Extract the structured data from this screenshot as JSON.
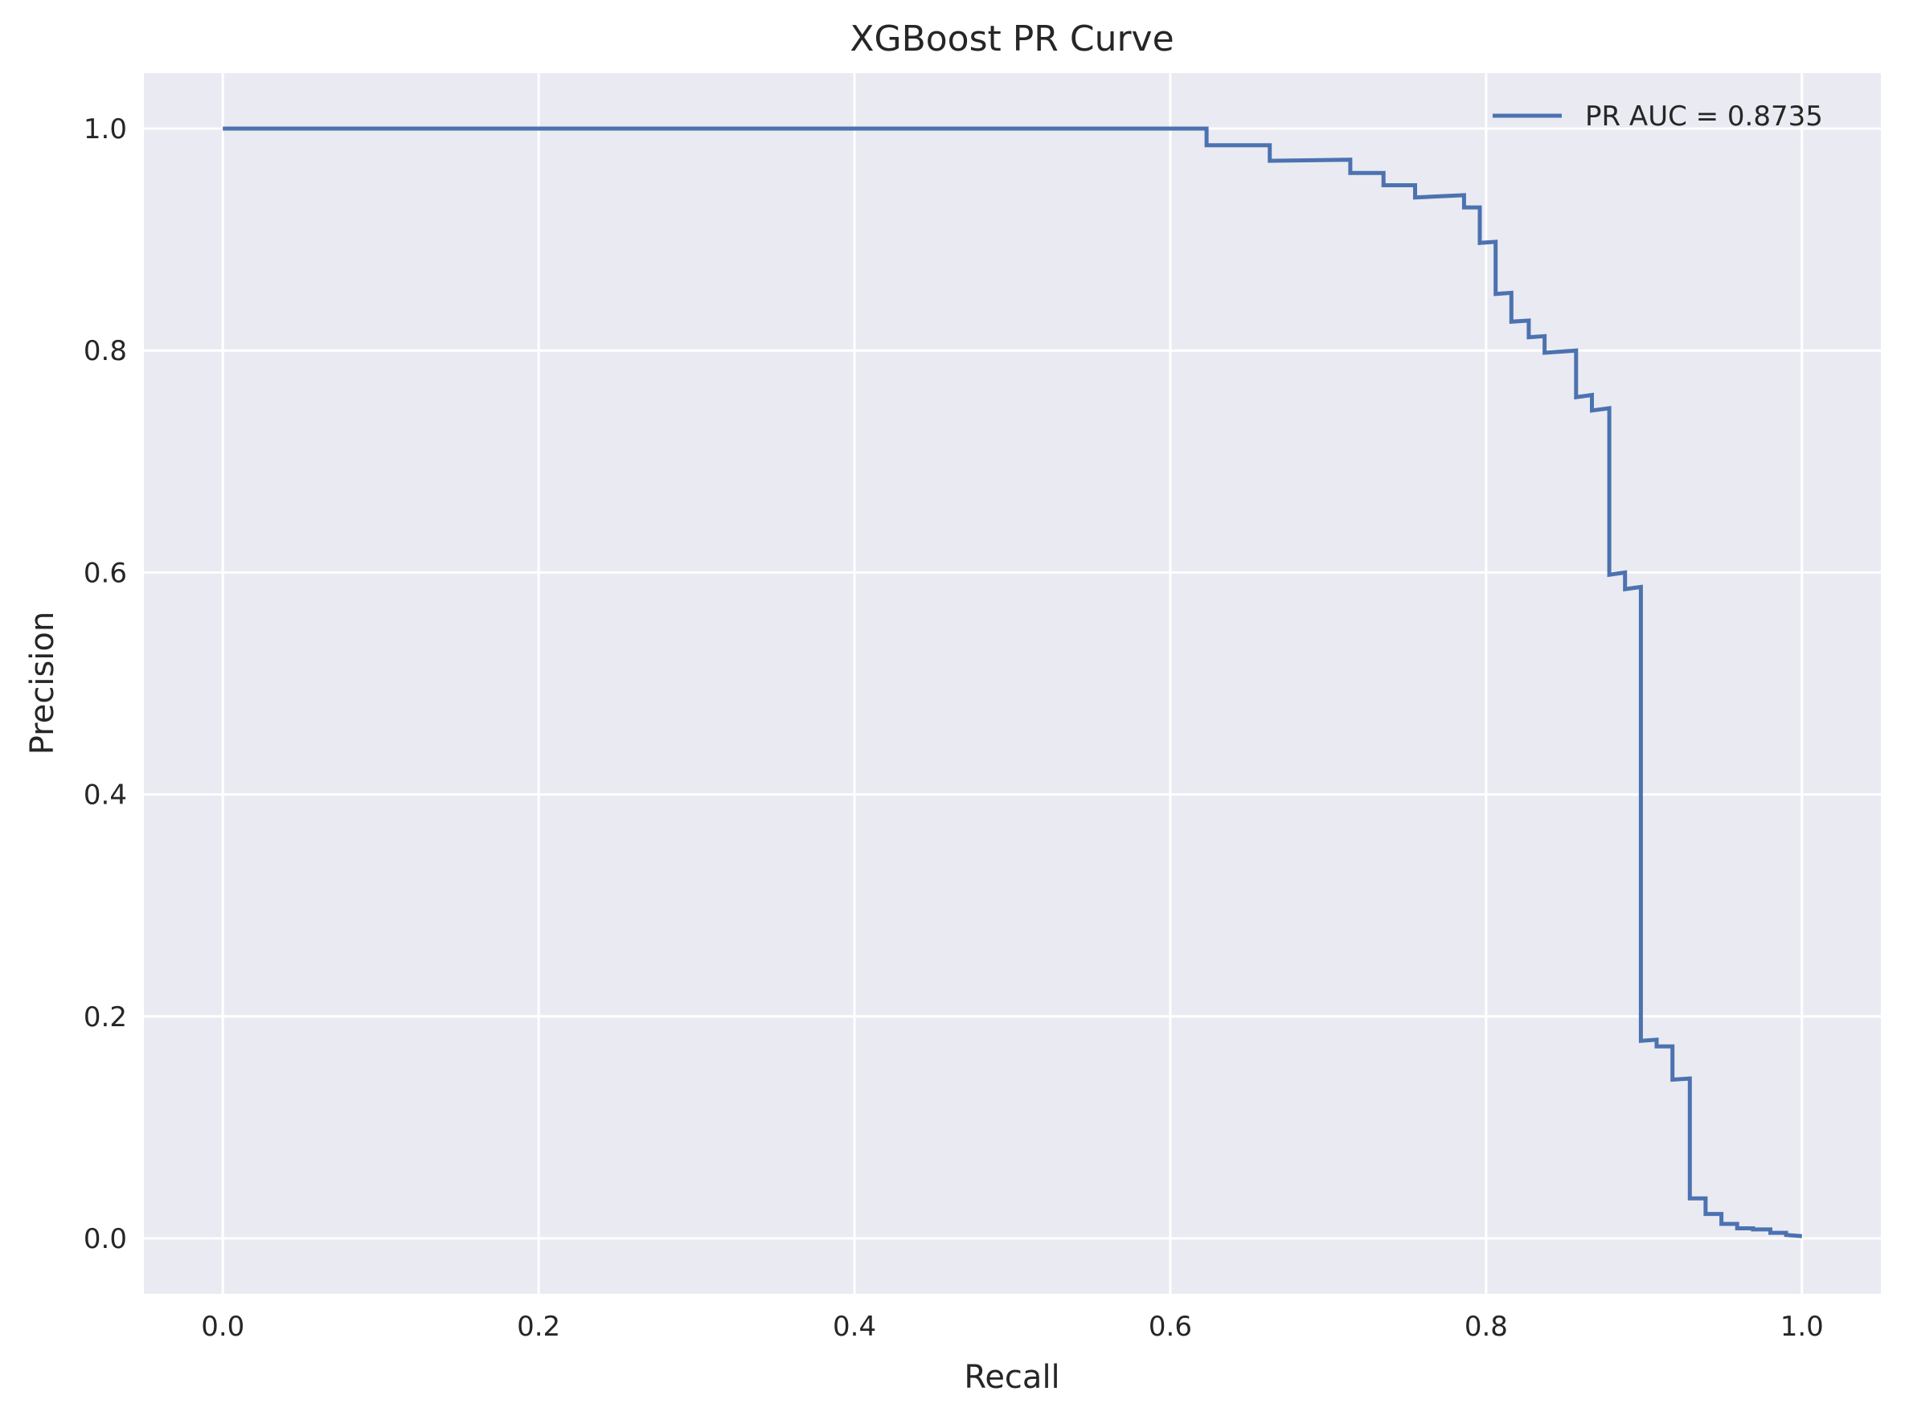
{
  "chart_data": {
    "type": "line",
    "title": "XGBoost PR Curve",
    "xlabel": "Recall",
    "ylabel": "Precision",
    "xlim": [
      -0.05,
      1.05
    ],
    "ylim": [
      -0.05,
      1.05
    ],
    "xticks": [
      0.0,
      0.2,
      0.4,
      0.6,
      0.8,
      1.0
    ],
    "yticks": [
      0.0,
      0.2,
      0.4,
      0.6,
      0.8,
      1.0
    ],
    "xtick_labels": [
      "0.0",
      "0.2",
      "0.4",
      "0.6",
      "0.8",
      "1.0"
    ],
    "ytick_labels": [
      "0.0",
      "0.2",
      "0.4",
      "0.6",
      "0.8",
      "1.0"
    ],
    "grid": true,
    "legend_position": "top-right",
    "background_color": "#eaeaf2",
    "grid_color": "#ffffff",
    "series": [
      {
        "name": "PR AUC = 0.8735",
        "color": "#4c72b0",
        "step": true,
        "points": [
          [
            0.0,
            1.0
          ],
          [
            0.623,
            1.0
          ],
          [
            0.623,
            0.985
          ],
          [
            0.663,
            0.985
          ],
          [
            0.663,
            0.971
          ],
          [
            0.714,
            0.972
          ],
          [
            0.714,
            0.96
          ],
          [
            0.735,
            0.96
          ],
          [
            0.735,
            0.949
          ],
          [
            0.755,
            0.949
          ],
          [
            0.755,
            0.938
          ],
          [
            0.786,
            0.94
          ],
          [
            0.786,
            0.929
          ],
          [
            0.796,
            0.929
          ],
          [
            0.796,
            0.897
          ],
          [
            0.806,
            0.898
          ],
          [
            0.806,
            0.851
          ],
          [
            0.816,
            0.852
          ],
          [
            0.816,
            0.826
          ],
          [
            0.827,
            0.827
          ],
          [
            0.827,
            0.812
          ],
          [
            0.837,
            0.813
          ],
          [
            0.837,
            0.798
          ],
          [
            0.857,
            0.8
          ],
          [
            0.857,
            0.758
          ],
          [
            0.867,
            0.76
          ],
          [
            0.867,
            0.746
          ],
          [
            0.878,
            0.748
          ],
          [
            0.878,
            0.598
          ],
          [
            0.888,
            0.6
          ],
          [
            0.888,
            0.585
          ],
          [
            0.898,
            0.587
          ],
          [
            0.898,
            0.178
          ],
          [
            0.908,
            0.179
          ],
          [
            0.908,
            0.173
          ],
          [
            0.918,
            0.173
          ],
          [
            0.918,
            0.143
          ],
          [
            0.929,
            0.144
          ],
          [
            0.929,
            0.036
          ],
          [
            0.939,
            0.036
          ],
          [
            0.939,
            0.022
          ],
          [
            0.949,
            0.022
          ],
          [
            0.949,
            0.013
          ],
          [
            0.959,
            0.013
          ],
          [
            0.959,
            0.009
          ],
          [
            0.969,
            0.009
          ],
          [
            0.969,
            0.008
          ],
          [
            0.98,
            0.008
          ],
          [
            0.98,
            0.005
          ],
          [
            0.99,
            0.005
          ],
          [
            0.99,
            0.003
          ],
          [
            1.0,
            0.002
          ]
        ]
      }
    ]
  }
}
